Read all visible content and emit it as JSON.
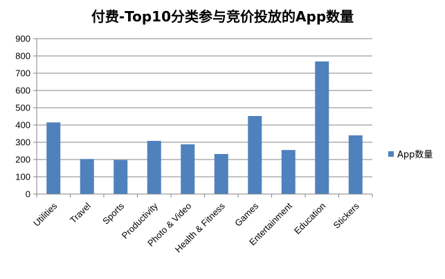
{
  "chart_data": {
    "type": "bar",
    "title": "付费-Top10分类参与竞价投放的App数量",
    "categories": [
      "Utilities",
      "Travel",
      "Sports",
      "Productivity",
      "Photo & Video",
      "Health & Fitness",
      "Games",
      "Entertainment",
      "Education",
      "Stickers"
    ],
    "series": [
      {
        "name": "App数量",
        "values": [
          415,
          203,
          197,
          308,
          288,
          232,
          452,
          255,
          768,
          340
        ]
      }
    ],
    "ylim": [
      0,
      900
    ],
    "yticks": [
      0,
      100,
      200,
      300,
      400,
      500,
      600,
      700,
      800,
      900
    ],
    "grid": true,
    "legend": "right",
    "bar_color": "#4F81BD",
    "grid_color": "#868686"
  }
}
